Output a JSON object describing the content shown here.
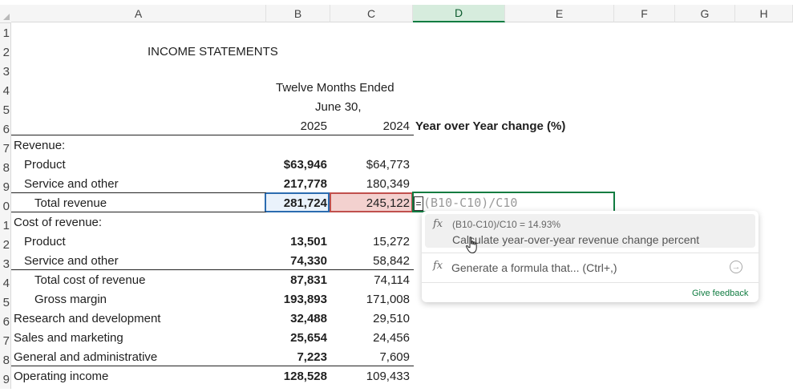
{
  "columns": [
    "A",
    "B",
    "C",
    "D",
    "E",
    "F",
    "G",
    "H"
  ],
  "rows": [
    "1",
    "2",
    "3",
    "4",
    "5",
    "6",
    "7",
    "8",
    "9",
    "0",
    "1",
    "2",
    "3",
    "4",
    "5",
    "6",
    "7",
    "8",
    "9"
  ],
  "sheet": {
    "title": "INCOME STATEMENTS",
    "period_line1": "Twelve Months Ended",
    "period_line2": "June 30,",
    "year_b": "2025",
    "year_c": "2024",
    "yoy_header": "Year over Year change (%)",
    "lines": [
      {
        "label": "Revenue:",
        "b": "",
        "c": ""
      },
      {
        "label": "Product",
        "b": "$63,946",
        "c": "$64,773"
      },
      {
        "label": "Service and other",
        "b": "217,778",
        "c": "180,349"
      },
      {
        "label": "Total revenue",
        "b": "281,724",
        "c": "245,122"
      },
      {
        "label": "Cost of revenue:",
        "b": "",
        "c": ""
      },
      {
        "label": "Product",
        "b": "13,501",
        "c": "15,272"
      },
      {
        "label": "Service and other",
        "b": "74,330",
        "c": "58,842"
      },
      {
        "label": "Total cost of revenue",
        "b": "87,831",
        "c": "74,114"
      },
      {
        "label": "Gross margin",
        "b": "193,893",
        "c": "171,008"
      },
      {
        "label": "Research and development",
        "b": "32,488",
        "c": "29,510"
      },
      {
        "label": "Sales and marketing",
        "b": "25,654",
        "c": "24,456"
      },
      {
        "label": "General and administrative",
        "b": "7,223",
        "c": "7,609"
      },
      {
        "label": "Operating income",
        "b": "128,528",
        "c": "109,433"
      }
    ]
  },
  "editor": {
    "equals": "=",
    "formula_ghost": "(B10-C10)/C10"
  },
  "popup": {
    "suggestion_formula": "(B10-C10)/C10 = 14.93%",
    "suggestion_desc": "Calculate year-over-year revenue change percent",
    "generate_label": "Generate a formula that... (Ctrl+,)",
    "feedback_label": "Give feedback"
  },
  "colors": {
    "accent": "#107c41",
    "selection_b": "#2b6cb0",
    "selection_c": "#c0504d"
  }
}
